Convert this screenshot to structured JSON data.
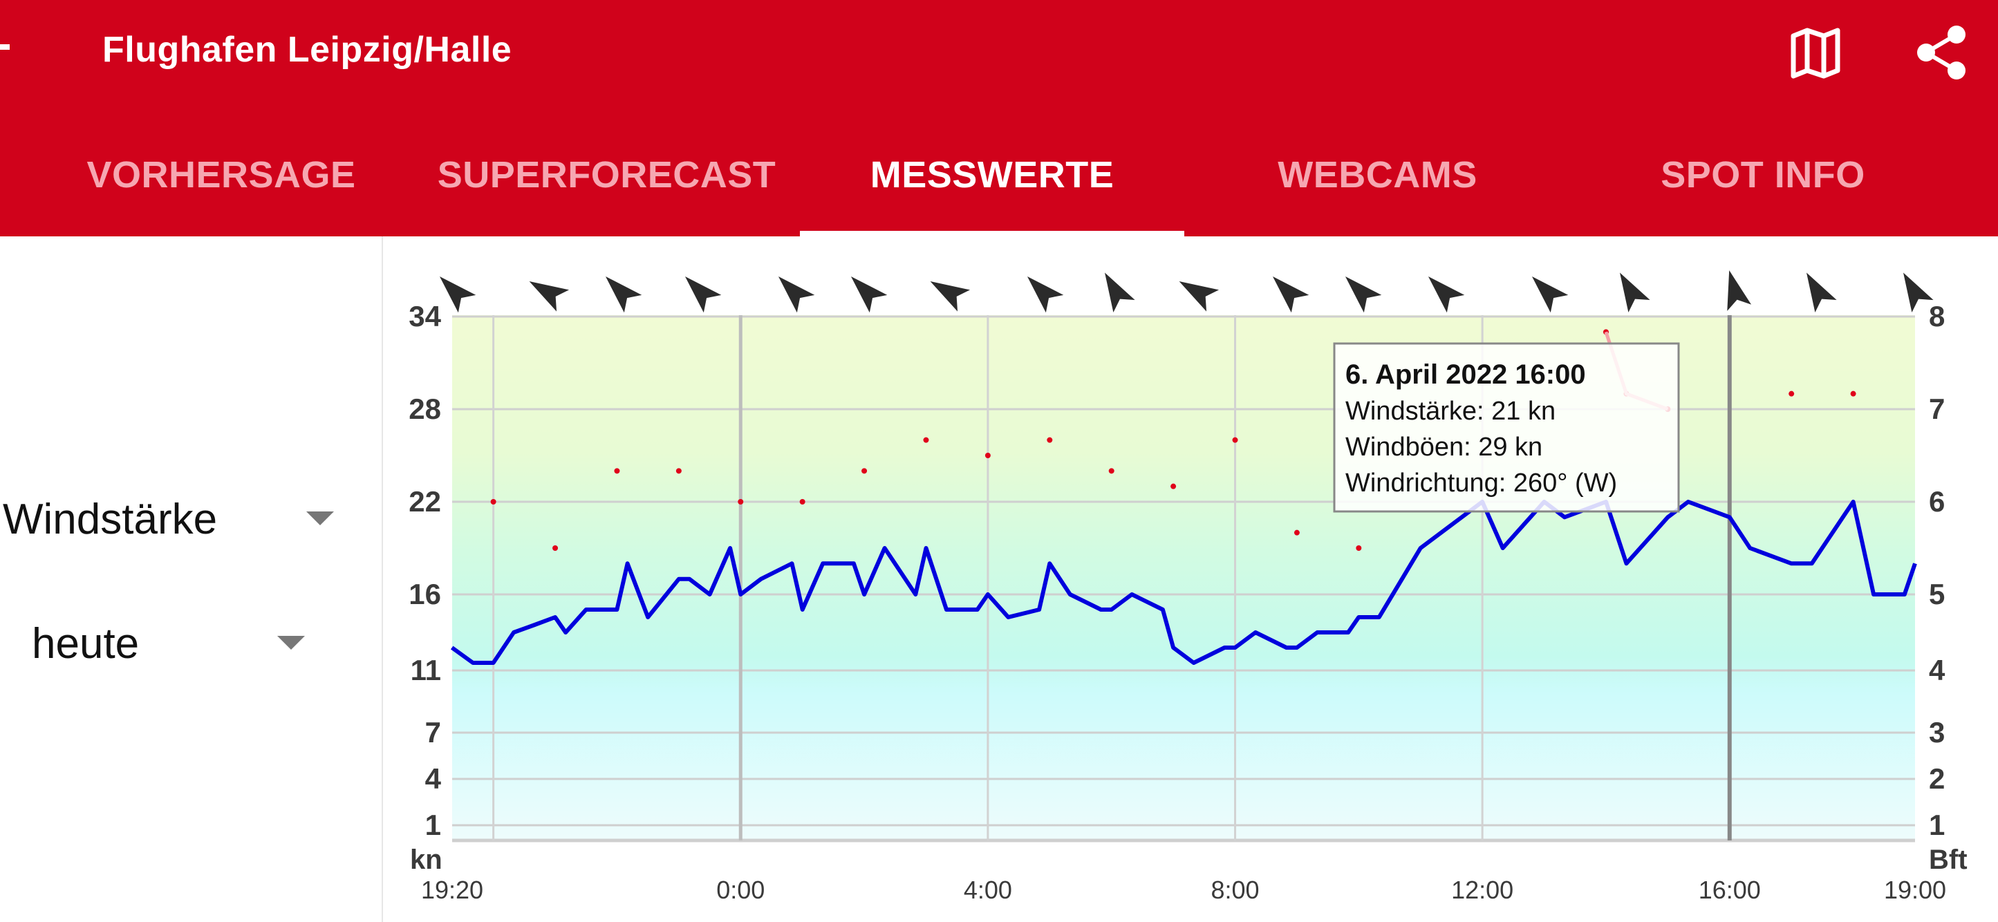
{
  "appbar": {
    "title": "Flughafen Leipzig/Halle",
    "background": "#d0021b",
    "icons": [
      "map-icon",
      "share-icon"
    ]
  },
  "tabs": [
    {
      "label": "VORHERSAGE",
      "active": false
    },
    {
      "label": "SUPERFORECAST",
      "active": false
    },
    {
      "label": "MESSWERTE",
      "active": true
    },
    {
      "label": "WEBCAMS",
      "active": false
    },
    {
      "label": "SPOT INFO",
      "active": false
    }
  ],
  "controls": {
    "measure_value": "Windstärke",
    "period_value": "heute"
  },
  "tooltip": {
    "title": "6. April 2022 16:00",
    "line1": "Windstärke: 21 kn",
    "line2": "Windböen: 29 kn",
    "line3": "Windrichtung: 260° (W)"
  },
  "chart_data": {
    "type": "line",
    "x_tick_labels": [
      "19:20",
      "0:00",
      "4:00",
      "8:00",
      "12:00",
      "16:00",
      "19:00"
    ],
    "y_left_unit": "kn",
    "y_left_ticks": [
      1,
      4,
      7,
      11,
      16,
      22,
      28,
      34
    ],
    "y_right_unit": "Bft",
    "y_right_ticks": [
      1,
      2,
      3,
      4,
      5,
      6,
      7,
      8
    ],
    "ylim": [
      0,
      34
    ],
    "x_range_hours": [
      -4.667,
      19.0
    ],
    "grid": true,
    "series": [
      {
        "color": "#0000dd",
        "points": [
          [
            -4.67,
            12.5
          ],
          [
            -4.33,
            11.5
          ],
          [
            -4.0,
            11.5
          ],
          [
            -3.67,
            13.5
          ],
          [
            -3.33,
            14
          ],
          [
            -3.0,
            14.5
          ],
          [
            -2.83,
            13.5
          ],
          [
            -2.5,
            15
          ],
          [
            -2.0,
            15
          ],
          [
            -1.83,
            18
          ],
          [
            -1.5,
            14.5
          ],
          [
            -1.0,
            17
          ],
          [
            -0.83,
            17
          ],
          [
            -0.5,
            16
          ],
          [
            -0.17,
            19
          ],
          [
            0.0,
            16
          ],
          [
            0.33,
            17
          ],
          [
            0.83,
            18
          ],
          [
            1.0,
            15
          ],
          [
            1.33,
            18
          ],
          [
            1.83,
            18
          ],
          [
            2.0,
            16
          ],
          [
            2.33,
            19
          ],
          [
            2.83,
            16
          ],
          [
            3.0,
            19
          ],
          [
            3.33,
            15
          ],
          [
            3.83,
            15
          ],
          [
            4.0,
            16
          ],
          [
            4.33,
            14.5
          ],
          [
            4.83,
            15
          ],
          [
            5.0,
            18
          ],
          [
            5.33,
            16
          ],
          [
            5.83,
            15
          ],
          [
            6.0,
            15
          ],
          [
            6.33,
            16
          ],
          [
            6.83,
            15
          ],
          [
            7.0,
            12.5
          ],
          [
            7.33,
            11.5
          ],
          [
            7.83,
            12.5
          ],
          [
            8.0,
            12.5
          ],
          [
            8.33,
            13.5
          ],
          [
            8.83,
            12.5
          ],
          [
            9.0,
            12.5
          ],
          [
            9.33,
            13.5
          ],
          [
            9.83,
            13.5
          ],
          [
            10.0,
            14.5
          ],
          [
            10.33,
            14.5
          ],
          [
            11.0,
            19
          ],
          [
            12.0,
            22
          ],
          [
            12.33,
            19
          ],
          [
            13.0,
            22
          ],
          [
            13.33,
            21
          ],
          [
            14.0,
            22
          ],
          [
            14.33,
            18
          ],
          [
            15.0,
            21
          ],
          [
            15.33,
            22
          ],
          [
            16.0,
            21
          ],
          [
            16.33,
            19
          ],
          [
            17.0,
            18
          ],
          [
            17.33,
            18
          ],
          [
            18.0,
            22
          ],
          [
            18.33,
            16
          ],
          [
            18.83,
            16
          ],
          [
            19.0,
            18
          ]
        ]
      },
      {
        "color": "#e0001a",
        "points": [
          [
            -4.0,
            22
          ],
          [
            -3.0,
            19
          ],
          [
            -2.0,
            24
          ],
          [
            -1.0,
            24
          ],
          [
            0.0,
            22
          ],
          [
            1.0,
            22
          ],
          [
            2.0,
            24
          ],
          [
            3.0,
            26
          ],
          [
            4.0,
            25
          ],
          [
            5.0,
            26
          ],
          [
            6.0,
            24
          ],
          [
            7.0,
            23
          ],
          [
            8.0,
            26
          ],
          [
            9.0,
            20
          ],
          [
            10.0,
            19
          ],
          [
            14.0,
            33
          ],
          [
            14.33,
            29
          ],
          [
            15.0,
            28
          ],
          [
            17.0,
            29
          ],
          [
            18.0,
            29
          ]
        ]
      }
    ],
    "wind_direction_deg": [
      225,
      210,
      225,
      225,
      225,
      225,
      210,
      225,
      240,
      210,
      225,
      225,
      225,
      225,
      240,
      255,
      240,
      240
    ],
    "colors": {
      "line": "#0000dd",
      "gust": "#e0001a",
      "tooltip_bg": "#ffffff"
    }
  }
}
